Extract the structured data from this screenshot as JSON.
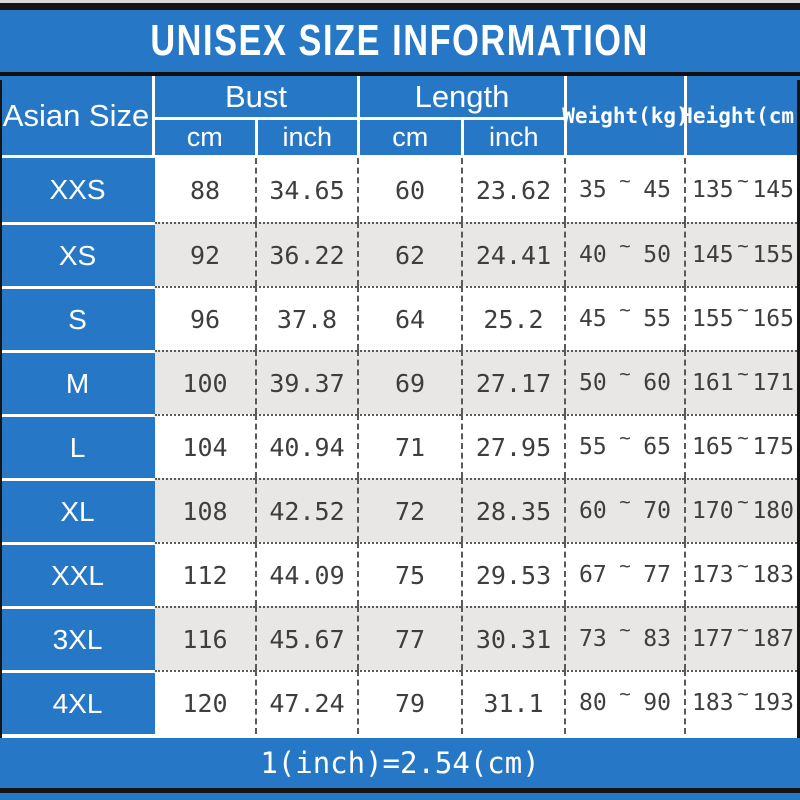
{
  "title": "UNISEX SIZE INFORMATION",
  "footer_note": "1(inch)=2.54(cm)",
  "colors": {
    "blue": "#2678c6",
    "alt_row_gray": "#e9e7e6",
    "text_dark": "#3e3e3e",
    "bar_black": "#141414",
    "white": "#ffffff"
  },
  "table": {
    "size_column_header": "Asian Size",
    "groups": [
      {
        "label": "Bust",
        "units": [
          "cm",
          "inch"
        ]
      },
      {
        "label": "Length",
        "units": [
          "cm",
          "inch"
        ]
      }
    ],
    "weight_header": "Weight(kg)",
    "height_header": "Height(cm)",
    "tilde": "~",
    "rows": [
      {
        "size": "XXS",
        "bust_cm": "88",
        "bust_inch": "34.65",
        "length_cm": "60",
        "length_inch": "23.62",
        "weight_min": "35",
        "weight_max": "45",
        "height_min": "135",
        "height_max": "145"
      },
      {
        "size": "XS",
        "bust_cm": "92",
        "bust_inch": "36.22",
        "length_cm": "62",
        "length_inch": "24.41",
        "weight_min": "40",
        "weight_max": "50",
        "height_min": "145",
        "height_max": "155"
      },
      {
        "size": "S",
        "bust_cm": "96",
        "bust_inch": "37.8",
        "length_cm": "64",
        "length_inch": "25.2",
        "weight_min": "45",
        "weight_max": "55",
        "height_min": "155",
        "height_max": "165"
      },
      {
        "size": "M",
        "bust_cm": "100",
        "bust_inch": "39.37",
        "length_cm": "69",
        "length_inch": "27.17",
        "weight_min": "50",
        "weight_max": "60",
        "height_min": "161",
        "height_max": "171"
      },
      {
        "size": "L",
        "bust_cm": "104",
        "bust_inch": "40.94",
        "length_cm": "71",
        "length_inch": "27.95",
        "weight_min": "55",
        "weight_max": "65",
        "height_min": "165",
        "height_max": "175"
      },
      {
        "size": "XL",
        "bust_cm": "108",
        "bust_inch": "42.52",
        "length_cm": "72",
        "length_inch": "28.35",
        "weight_min": "60",
        "weight_max": "70",
        "height_min": "170",
        "height_max": "180"
      },
      {
        "size": "XXL",
        "bust_cm": "112",
        "bust_inch": "44.09",
        "length_cm": "75",
        "length_inch": "29.53",
        "weight_min": "67",
        "weight_max": "77",
        "height_min": "173",
        "height_max": "183"
      },
      {
        "size": "3XL",
        "bust_cm": "116",
        "bust_inch": "45.67",
        "length_cm": "77",
        "length_inch": "30.31",
        "weight_min": "73",
        "weight_max": "83",
        "height_min": "177",
        "height_max": "187"
      },
      {
        "size": "4XL",
        "bust_cm": "120",
        "bust_inch": "47.24",
        "length_cm": "79",
        "length_inch": "31.1",
        "weight_min": "80",
        "weight_max": "90",
        "height_min": "183",
        "height_max": "193"
      }
    ]
  },
  "chart_data": {
    "type": "table",
    "title": "UNISEX SIZE INFORMATION",
    "columns": [
      "Asian Size",
      "Bust cm",
      "Bust inch",
      "Length cm",
      "Length inch",
      "Weight(kg)",
      "Height(cm)"
    ],
    "rows": [
      [
        "XXS",
        88,
        34.65,
        60,
        23.62,
        "35~45",
        "135~145"
      ],
      [
        "XS",
        92,
        36.22,
        62,
        24.41,
        "40~50",
        "145~155"
      ],
      [
        "S",
        96,
        37.8,
        64,
        25.2,
        "45~55",
        "155~165"
      ],
      [
        "M",
        100,
        39.37,
        69,
        27.17,
        "50~60",
        "161~171"
      ],
      [
        "L",
        104,
        40.94,
        71,
        27.95,
        "55~65",
        "165~175"
      ],
      [
        "XL",
        108,
        42.52,
        72,
        28.35,
        "60~70",
        "170~180"
      ],
      [
        "XXL",
        112,
        44.09,
        75,
        29.53,
        "67~77",
        "173~183"
      ],
      [
        "3XL",
        116,
        45.67,
        77,
        30.31,
        "73~83",
        "177~187"
      ],
      [
        "4XL",
        120,
        47.24,
        79,
        31.1,
        "80~90",
        "183~193"
      ]
    ],
    "footnote": "1(inch)=2.54(cm)"
  }
}
